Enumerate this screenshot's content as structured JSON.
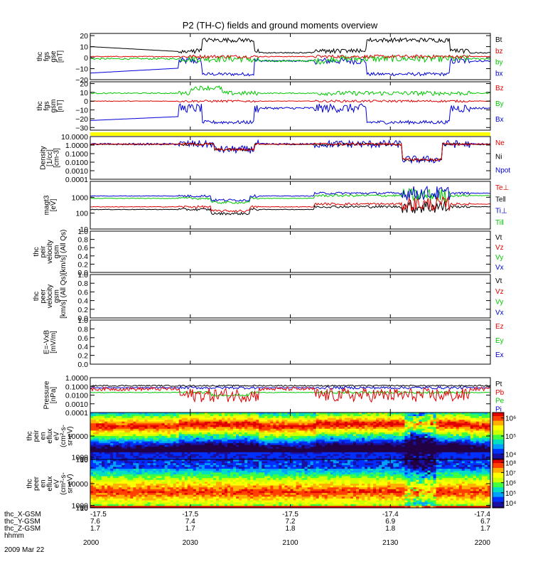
{
  "title": "P2 (TH-C) fields and ground moments overview",
  "colors": {
    "black": "#000000",
    "red": "#e00000",
    "green": "#00c800",
    "blue": "#0000d8",
    "yellow": "#ffff00",
    "frame": "#000000"
  },
  "time_axis": {
    "labels": [
      "2000",
      "2030",
      "2100",
      "2130",
      "2200"
    ],
    "rows": [
      {
        "label": "thc_X-GSM",
        "values": [
          "-17.5",
          "-17.5",
          "-17.5",
          "-17.4",
          "-17.4"
        ]
      },
      {
        "label": "thc_Y-GSM",
        "values": [
          "7.6",
          "7.4",
          "7.2",
          "6.9",
          "6.7"
        ]
      },
      {
        "label": "thc_Z-GSM",
        "values": [
          "1.7",
          "1.7",
          "1.8",
          "1.8",
          "1.7"
        ]
      },
      {
        "label": "hhmm",
        "values": []
      }
    ],
    "date": "2009 Mar 22"
  },
  "chart_data": [
    {
      "type": "line",
      "id": "fgs_gse",
      "ylabel": [
        "thc",
        "fgs",
        "gse",
        "[nT]"
      ],
      "ylim": [
        -20,
        22
      ],
      "yticks": [
        "20",
        "10",
        "0",
        "−10",
        "−20"
      ],
      "tick_values": [
        20,
        10,
        0,
        -10,
        -20
      ],
      "series": [
        {
          "name": "Bt",
          "color": "black"
        },
        {
          "name": "bz",
          "color": "red"
        },
        {
          "name": "by",
          "color": "green"
        },
        {
          "name": "bx",
          "color": "blue"
        }
      ]
    },
    {
      "type": "line",
      "id": "fgs_gsm",
      "ylabel": [
        "thc",
        "fgs",
        "gsm",
        "[nT]"
      ],
      "ylim": [
        -33,
        22
      ],
      "yticks": [
        "20",
        "10",
        "0",
        "−10",
        "−20",
        "−30"
      ],
      "tick_values": [
        20,
        10,
        0,
        -10,
        -20,
        -30
      ],
      "series": [
        {
          "name": "Bz",
          "color": "red"
        },
        {
          "name": "By",
          "color": "green"
        },
        {
          "name": "Bx",
          "color": "blue"
        }
      ]
    },
    {
      "type": "line",
      "id": "density",
      "scale": "log",
      "ylabel": [
        "Density",
        "[1/cc]",
        "[cm-3]"
      ],
      "ylim": [
        0.0001,
        10
      ],
      "yticks": [
        "10.0000",
        "1.0000",
        "0.1000",
        "0.0100",
        "0.0010",
        "0.0001"
      ],
      "tick_values": [
        10,
        1,
        0.1,
        0.01,
        0.001,
        0.0001
      ],
      "series": [
        {
          "name": "Ne",
          "color": "red"
        },
        {
          "name": "Ni",
          "color": "black"
        },
        {
          "name": "Npot",
          "color": "blue"
        }
      ]
    },
    {
      "type": "line",
      "id": "temperature",
      "scale": "log",
      "ylabel": [
        "magt3",
        "[eV]"
      ],
      "ylim": [
        10,
        10000
      ],
      "yticks": [
        "1000",
        "100",
        "10"
      ],
      "tick_values": [
        1000,
        100,
        10
      ],
      "series": [
        {
          "name": "Te⊥",
          "color": "red"
        },
        {
          "name": "Te‖",
          "color": "black"
        },
        {
          "name": "Ti⊥",
          "color": "blue"
        },
        {
          "name": "Ti‖",
          "color": "green"
        }
      ]
    },
    {
      "type": "line",
      "id": "peir_velocity",
      "ylabel": [
        "thc",
        "peir",
        "velocity",
        "gsm",
        "[km/s] (All Qs)"
      ],
      "ylim": [
        0,
        1
      ],
      "yticks": [
        "1.0",
        "0.8",
        "0.6",
        "0.4",
        "0.2",
        "0.0"
      ],
      "tick_values": [
        1,
        0.8,
        0.6,
        0.4,
        0.2,
        0
      ],
      "series": [
        {
          "name": "Vt",
          "color": "black"
        },
        {
          "name": "Vz",
          "color": "red"
        },
        {
          "name": "Vy",
          "color": "green"
        },
        {
          "name": "Vx",
          "color": "blue"
        }
      ]
    },
    {
      "type": "line",
      "id": "peer_velocity",
      "ylabel": [
        "thc",
        "peer",
        "velocity",
        "gsm",
        "[km/s] (All Qs)"
      ],
      "ylim": [
        0,
        1
      ],
      "yticks": [
        "1.0",
        "0.8",
        "0.6",
        "0.4",
        "0.2",
        "0.0"
      ],
      "tick_values": [
        1,
        0.8,
        0.6,
        0.4,
        0.2,
        0
      ],
      "series": [
        {
          "name": "Vt",
          "color": "black"
        },
        {
          "name": "Vz",
          "color": "red"
        },
        {
          "name": "Vy",
          "color": "green"
        },
        {
          "name": "Vx",
          "color": "blue"
        }
      ]
    },
    {
      "type": "line",
      "id": "efield",
      "ylabel": [
        "E=-VxB",
        "[mV/m]"
      ],
      "ylim": [
        0,
        1
      ],
      "yticks": [
        "1.0",
        "0.8",
        "0.6",
        "0.4",
        "0.2",
        "0.0"
      ],
      "tick_values": [
        1,
        0.8,
        0.6,
        0.4,
        0.2,
        0
      ],
      "series": [
        {
          "name": "Ez",
          "color": "red"
        },
        {
          "name": "Ey",
          "color": "green"
        },
        {
          "name": "Ex",
          "color": "blue"
        }
      ]
    },
    {
      "type": "line",
      "id": "pressure",
      "scale": "log",
      "ylabel": [
        "Pressure",
        "[nPa]"
      ],
      "ylim": [
        0.0001,
        1
      ],
      "yticks": [
        "1.0000",
        "0.1000",
        "0.0100",
        "0.0010",
        "0.0001"
      ],
      "tick_values": [
        1,
        0.1,
        0.01,
        0.001,
        0.0001
      ],
      "series": [
        {
          "name": "Pt",
          "color": "black"
        },
        {
          "name": "Pb",
          "color": "red"
        },
        {
          "name": "Pe",
          "color": "green"
        },
        {
          "name": "Pi",
          "color": "blue"
        }
      ]
    },
    {
      "type": "heatmap",
      "id": "peir_eflux",
      "ylabel": [
        "thc",
        "peir",
        "en",
        "eflux",
        "eV",
        "(cm²-s-",
        "sr-eV)"
      ],
      "ylim": [
        5,
        20000
      ],
      "yticks": [
        "10000",
        "1000",
        "100",
        "10"
      ],
      "tick_values": [
        10000,
        1000,
        100,
        10
      ],
      "colorbar": {
        "ticks": [
          "10⁶",
          "10⁵",
          "10⁴"
        ],
        "tick_exponents": [
          6,
          5,
          4
        ],
        "range_exponents": [
          3.7,
          6.3
        ]
      }
    },
    {
      "type": "heatmap",
      "id": "peer_eflux",
      "ylabel": [
        "thc",
        "peer",
        "en",
        "eflux",
        "eV",
        "(cm²-s-",
        "sr-eV)"
      ],
      "ylim": [
        5,
        20000
      ],
      "yticks": [
        "10000",
        "1000",
        "100",
        "10"
      ],
      "tick_values": [
        10000,
        1000,
        100,
        10
      ],
      "colorbar": {
        "ticks": [
          "10⁸",
          "10⁷",
          "10⁶",
          "10⁵",
          "10⁴"
        ],
        "tick_exponents": [
          8,
          7,
          6,
          5,
          4
        ],
        "range_exponents": [
          3.5,
          8.3
        ]
      }
    }
  ]
}
